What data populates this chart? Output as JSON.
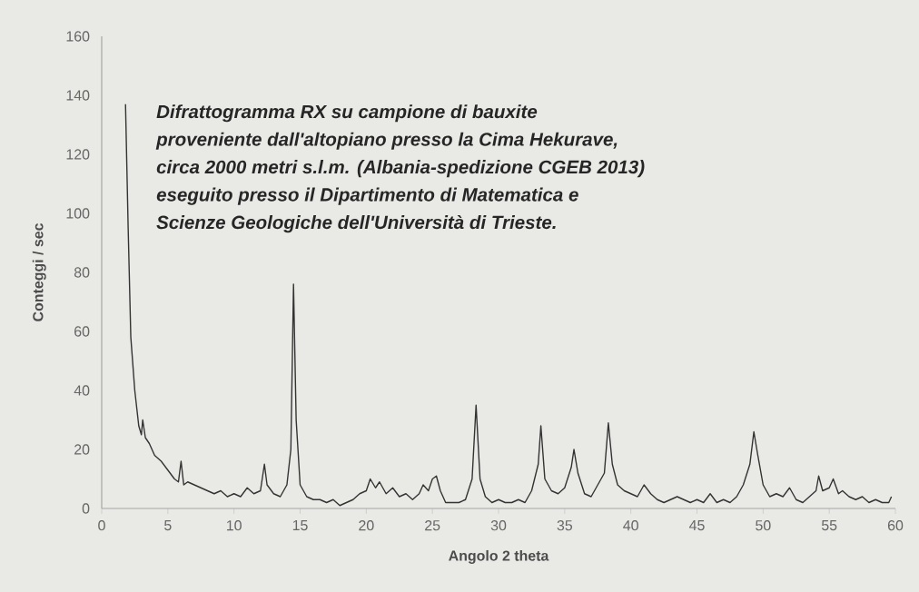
{
  "chart_data": {
    "type": "line",
    "annotations": [
      "Difrattogramma RX su campione di bauxite",
      "proveniente dall'altopiano presso la Cima Hekurave,",
      "circa 2000 metri s.l.m. (Albania-spedizione CGEB 2013)",
      "eseguito presso il Dipartimento di Matematica e",
      "Scienze Geologiche dell'Università di Trieste."
    ],
    "xlabel": "Angolo 2 theta",
    "ylabel": "Conteggi / sec",
    "x": [
      1.8,
      2.0,
      2.2,
      2.5,
      2.8,
      3.0,
      3.1,
      3.3,
      3.6,
      4,
      4.5,
      5,
      5.5,
      5.8,
      6.0,
      6.2,
      6.5,
      7,
      7.5,
      8,
      8.5,
      9,
      9.5,
      10,
      10.5,
      11,
      11.5,
      12,
      12.3,
      12.5,
      13,
      13.5,
      14,
      14.3,
      14.5,
      14.7,
      15,
      15.5,
      16,
      16.5,
      17,
      17.5,
      18,
      18.5,
      19,
      19.5,
      20,
      20.3,
      20.7,
      21,
      21.5,
      22,
      22.5,
      23,
      23.5,
      24,
      24.3,
      24.7,
      25,
      25.3,
      25.6,
      26,
      26.5,
      27,
      27.5,
      28,
      28.3,
      28.6,
      29,
      29.5,
      30,
      30.5,
      31,
      31.5,
      32,
      32.5,
      33,
      33.2,
      33.5,
      34,
      34.5,
      35,
      35.5,
      35.7,
      36,
      36.5,
      37,
      37.5,
      38,
      38.3,
      38.6,
      39,
      39.5,
      40,
      40.5,
      41,
      41.5,
      42,
      42.5,
      43,
      43.5,
      44,
      44.5,
      45,
      45.5,
      46,
      46.5,
      47,
      47.5,
      48,
      48.5,
      49,
      49.3,
      49.6,
      50,
      50.5,
      51,
      51.5,
      52,
      52.5,
      53,
      53.5,
      54,
      54.2,
      54.5,
      55,
      55.3,
      55.7,
      56,
      56.5,
      57,
      57.5,
      58,
      58.5,
      59,
      59.5,
      59.7
    ],
    "values": [
      137,
      95,
      58,
      40,
      28,
      25,
      30,
      24,
      22,
      18,
      16,
      13,
      10,
      9,
      16,
      8,
      9,
      8,
      7,
      6,
      5,
      6,
      4,
      5,
      4,
      7,
      5,
      6,
      15,
      8,
      5,
      4,
      8,
      20,
      76,
      30,
      8,
      4,
      3,
      3,
      2,
      3,
      1,
      2,
      3,
      5,
      6,
      10,
      7,
      9,
      5,
      7,
      4,
      5,
      3,
      5,
      8,
      6,
      10,
      11,
      6,
      2,
      2,
      2,
      3,
      10,
      35,
      10,
      4,
      2,
      3,
      2,
      2,
      3,
      2,
      6,
      15,
      28,
      10,
      6,
      5,
      7,
      14,
      20,
      12,
      5,
      4,
      8,
      12,
      29,
      15,
      8,
      6,
      5,
      4,
      8,
      5,
      3,
      2,
      3,
      4,
      3,
      2,
      3,
      2,
      5,
      2,
      3,
      2,
      4,
      8,
      15,
      26,
      18,
      8,
      4,
      5,
      4,
      7,
      3,
      2,
      4,
      6,
      11,
      6,
      7,
      10,
      5,
      6,
      4,
      3,
      4,
      2,
      3,
      2,
      2,
      4
    ],
    "color": "#333333",
    "xlim": [
      0,
      60
    ],
    "xticks": [
      0,
      5,
      10,
      15,
      20,
      25,
      30,
      35,
      40,
      45,
      50,
      55,
      60
    ],
    "ylim": [
      0,
      160
    ],
    "yticks": [
      0,
      20,
      40,
      60,
      80,
      100,
      120,
      140,
      160
    ]
  }
}
